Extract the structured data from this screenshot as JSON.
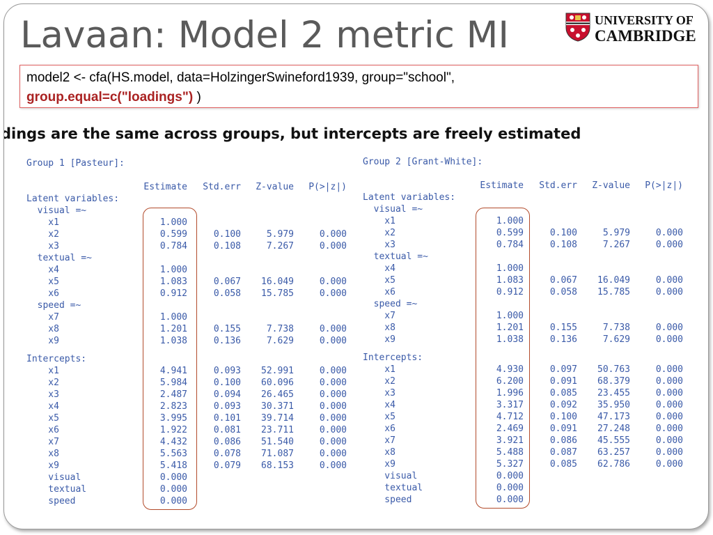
{
  "title": "Lavaan: Model 2 metric MI",
  "logo": {
    "line1": "UNIVERSITY OF",
    "line2": "CAMBRIDGE"
  },
  "code": {
    "line1": "model2 <- cfa(HS.model, data=HolzingerSwineford1939, group=\"school\",",
    "highlight": "group.equal=c(\"loadings\")",
    "tail": " )"
  },
  "subtitle": "dings are the same across groups, but intercepts are freely estimated",
  "groups": [
    {
      "title": "Group 1 [Pasteur]:",
      "header": [
        "Estimate",
        "Std.err",
        "Z-value",
        "P(>|z|)"
      ],
      "sections": [
        {
          "heading": "Latent variables:",
          "rows": [
            [
              "  visual =~"
            ],
            [
              "    x1",
              "1.000"
            ],
            [
              "    x2",
              "0.599",
              "0.100",
              "5.979",
              "0.000"
            ],
            [
              "    x3",
              "0.784",
              "0.108",
              "7.267",
              "0.000"
            ],
            [
              "  textual =~"
            ],
            [
              "    x4",
              "1.000"
            ],
            [
              "    x5",
              "1.083",
              "0.067",
              "16.049",
              "0.000"
            ],
            [
              "    x6",
              "0.912",
              "0.058",
              "15.785",
              "0.000"
            ],
            [
              "  speed =~"
            ],
            [
              "    x7",
              "1.000"
            ],
            [
              "    x8",
              "1.201",
              "0.155",
              "7.738",
              "0.000"
            ],
            [
              "    x9",
              "1.038",
              "0.136",
              "7.629",
              "0.000"
            ]
          ]
        },
        {
          "heading": "Intercepts:",
          "rows": [
            [
              "    x1",
              "4.941",
              "0.093",
              "52.991",
              "0.000"
            ],
            [
              "    x2",
              "5.984",
              "0.100",
              "60.096",
              "0.000"
            ],
            [
              "    x3",
              "2.487",
              "0.094",
              "26.465",
              "0.000"
            ],
            [
              "    x4",
              "2.823",
              "0.093",
              "30.371",
              "0.000"
            ],
            [
              "    x5",
              "3.995",
              "0.101",
              "39.714",
              "0.000"
            ],
            [
              "    x6",
              "1.922",
              "0.081",
              "23.711",
              "0.000"
            ],
            [
              "    x7",
              "4.432",
              "0.086",
              "51.540",
              "0.000"
            ],
            [
              "    x8",
              "5.563",
              "0.078",
              "71.087",
              "0.000"
            ],
            [
              "    x9",
              "5.418",
              "0.079",
              "68.153",
              "0.000"
            ],
            [
              "    visual",
              "0.000"
            ],
            [
              "    textual",
              "0.000"
            ],
            [
              "    speed",
              "0.000"
            ]
          ]
        }
      ]
    },
    {
      "title": "Group 2 [Grant-White]:",
      "header": [
        "Estimate",
        "Std.err",
        "Z-value",
        "P(>|z|)"
      ],
      "sections": [
        {
          "heading": "Latent variables:",
          "rows": [
            [
              "  visual =~"
            ],
            [
              "    x1",
              "1.000"
            ],
            [
              "    x2",
              "0.599",
              "0.100",
              "5.979",
              "0.000"
            ],
            [
              "    x3",
              "0.784",
              "0.108",
              "7.267",
              "0.000"
            ],
            [
              "  textual =~"
            ],
            [
              "    x4",
              "1.000"
            ],
            [
              "    x5",
              "1.083",
              "0.067",
              "16.049",
              "0.000"
            ],
            [
              "    x6",
              "0.912",
              "0.058",
              "15.785",
              "0.000"
            ],
            [
              "  speed =~"
            ],
            [
              "    x7",
              "1.000"
            ],
            [
              "    x8",
              "1.201",
              "0.155",
              "7.738",
              "0.000"
            ],
            [
              "    x9",
              "1.038",
              "0.136",
              "7.629",
              "0.000"
            ]
          ]
        },
        {
          "heading": "Intercepts:",
          "rows": [
            [
              "    x1",
              "4.930",
              "0.097",
              "50.763",
              "0.000"
            ],
            [
              "    x2",
              "6.200",
              "0.091",
              "68.379",
              "0.000"
            ],
            [
              "    x3",
              "1.996",
              "0.085",
              "23.455",
              "0.000"
            ],
            [
              "    x4",
              "3.317",
              "0.092",
              "35.950",
              "0.000"
            ],
            [
              "    x5",
              "4.712",
              "0.100",
              "47.173",
              "0.000"
            ],
            [
              "    x6",
              "2.469",
              "0.091",
              "27.248",
              "0.000"
            ],
            [
              "    x7",
              "3.921",
              "0.086",
              "45.555",
              "0.000"
            ],
            [
              "    x8",
              "5.488",
              "0.087",
              "63.257",
              "0.000"
            ],
            [
              "    x9",
              "5.327",
              "0.085",
              "62.786",
              "0.000"
            ],
            [
              "    visual",
              "0.000"
            ],
            [
              "    textual",
              "0.000"
            ],
            [
              "    speed",
              "0.000"
            ]
          ]
        }
      ]
    }
  ]
}
